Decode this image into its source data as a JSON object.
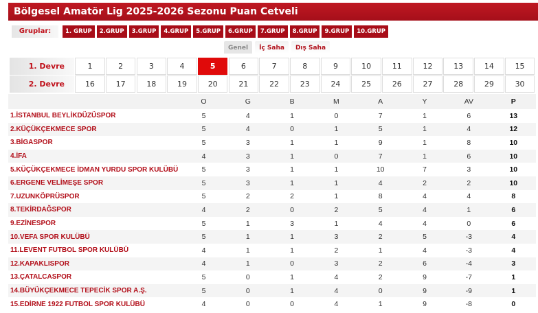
{
  "title": "Bölgesel Amatör Lig 2025-2026 Sezonu Puan Cetveli",
  "groups_label": "Gruplar:",
  "groups": [
    "1. GRUP",
    "2.GRUP",
    "3.GRUP",
    "4.GRUP",
    "5.GRUP",
    "6.GRUP",
    "7.GRUP",
    "8.GRUP",
    "9.GRUP",
    "10.GRUP"
  ],
  "tabs": [
    {
      "label": "Genel",
      "active": true
    },
    {
      "label": "İç Saha"
    },
    {
      "label": "Dış Saha"
    }
  ],
  "devre": [
    {
      "label": "1. Devre",
      "weeks": [
        "1",
        "2",
        "3",
        "4",
        "5",
        "6",
        "7",
        "8",
        "9",
        "10",
        "11",
        "12",
        "13",
        "14",
        "15"
      ]
    },
    {
      "label": "2. Devre",
      "weeks": [
        "16",
        "17",
        "18",
        "19",
        "20",
        "21",
        "22",
        "23",
        "24",
        "25",
        "26",
        "27",
        "28",
        "29",
        "30"
      ]
    }
  ],
  "selected_week": "5",
  "colors": {
    "brand": "#a80d18",
    "selected": "#e00a0a"
  },
  "headers": [
    "",
    "O",
    "G",
    "B",
    "M",
    "A",
    "Y",
    "AV",
    "P"
  ],
  "rows": [
    [
      "1.İSTANBUL BEYLİKDÜZÜSPOR",
      "5",
      "4",
      "1",
      "0",
      "7",
      "1",
      "6",
      "13"
    ],
    [
      "2.KÜÇÜKÇEKMECE SPOR",
      "5",
      "4",
      "0",
      "1",
      "5",
      "1",
      "4",
      "12"
    ],
    [
      "3.BİGASPOR",
      "5",
      "3",
      "1",
      "1",
      "9",
      "1",
      "8",
      "10"
    ],
    [
      "4.İFA",
      "4",
      "3",
      "1",
      "0",
      "7",
      "1",
      "6",
      "10"
    ],
    [
      "5.KÜÇÜKÇEKMECE İDMAN YURDU SPOR KULÜBÜ",
      "5",
      "3",
      "1",
      "1",
      "10",
      "7",
      "3",
      "10"
    ],
    [
      "6.ERGENE VELİMEŞE SPOR",
      "5",
      "3",
      "1",
      "1",
      "4",
      "2",
      "2",
      "10"
    ],
    [
      "7.UZUNKÖPRÜSPOR",
      "5",
      "2",
      "2",
      "1",
      "8",
      "4",
      "4",
      "8"
    ],
    [
      "8.TEKİRDAĞSPOR",
      "4",
      "2",
      "0",
      "2",
      "5",
      "4",
      "1",
      "6"
    ],
    [
      "9.EZİNESPOR",
      "5",
      "1",
      "3",
      "1",
      "4",
      "4",
      "0",
      "6"
    ],
    [
      "10.VEFA SPOR KULÜBÜ",
      "5",
      "1",
      "1",
      "3",
      "2",
      "5",
      "-3",
      "4"
    ],
    [
      "11.LEVENT FUTBOL SPOR KULÜBÜ",
      "4",
      "1",
      "1",
      "2",
      "1",
      "4",
      "-3",
      "4"
    ],
    [
      "12.KAPAKLISPOR",
      "4",
      "1",
      "0",
      "3",
      "2",
      "6",
      "-4",
      "3"
    ],
    [
      "13.ÇATALCASPOR",
      "5",
      "0",
      "1",
      "4",
      "2",
      "9",
      "-7",
      "1"
    ],
    [
      "14.BÜYÜKÇEKMECE TEPECİK SPOR A.Ş.",
      "5",
      "0",
      "1",
      "4",
      "0",
      "9",
      "-9",
      "1"
    ],
    [
      "15.EDİRNE 1922 FUTBOL SPOR KULÜBÜ",
      "4",
      "0",
      "0",
      "4",
      "1",
      "9",
      "-8",
      "0"
    ]
  ]
}
